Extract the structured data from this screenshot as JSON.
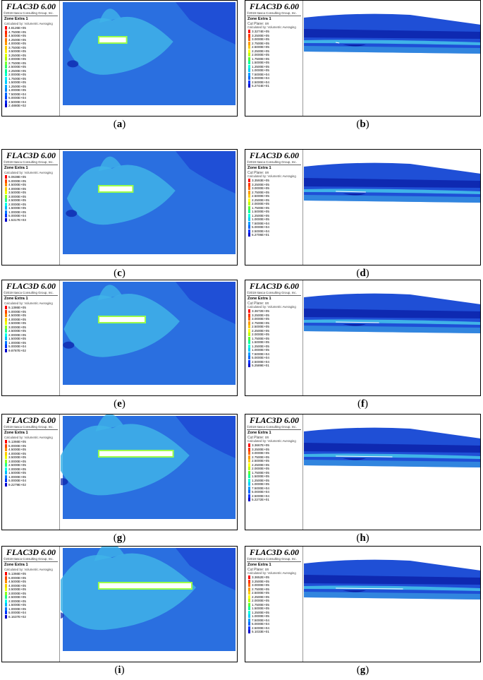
{
  "panels": [
    {
      "id": "a",
      "caption": "a",
      "view": "plan",
      "title": "FLAC3D 6.00",
      "copyright": "©2019 Itasca Consulting Group, Inc.",
      "zone": "Zone Extra 1",
      "cut_plane": "",
      "sub": "Calculated by: Volumetric Averaging",
      "values": [
        "4.8126E+05",
        "4.7500E+05",
        "4.5000E+05",
        "4.2500E+05",
        "4.0000E+05",
        "3.7500E+05",
        "3.5000E+05",
        "3.2500E+05",
        "3.0000E+05",
        "2.7500E+05",
        "2.5000E+05",
        "2.2500E+05",
        "2.0000E+05",
        "1.7500E+05",
        "1.5000E+05",
        "1.2500E+05",
        "1.0000E+05",
        "7.5000E+04",
        "5.0000E+04",
        "2.5000E+04",
        "2.4880E+02"
      ],
      "colors": [
        "#ff0000",
        "#ff2200",
        "#ff4400",
        "#ff7700",
        "#ff9900",
        "#ffcc00",
        "#ffee00",
        "#ddff00",
        "#aaff00",
        "#77ff33",
        "#33ff66",
        "#00ff99",
        "#00ffcc",
        "#00eeff",
        "#00ccff",
        "#00aaff",
        "#0088ff",
        "#0066ff",
        "#0044ff",
        "#0022ee",
        "#0000cc"
      ],
      "slot": 0.08
    },
    {
      "id": "b",
      "caption": "b",
      "view": "section",
      "title": "FLAC3D 6.00",
      "copyright": "©2019 Itasca Consulting Group, Inc.",
      "zone": "Zone Extra 1",
      "cut_plane": "Cut Plane: on",
      "sub": "Calculated by: Volumetric Averaging",
      "values": [
        "3.3274E+05",
        "3.2500E+05",
        "3.0000E+05",
        "2.7500E+05",
        "2.5000E+05",
        "2.2500E+05",
        "2.0000E+05",
        "1.7500E+05",
        "1.5000E+05",
        "1.2500E+05",
        "1.0000E+05",
        "7.5000E+04",
        "5.0000E+04",
        "2.5000E+04",
        "5.2744E+01"
      ],
      "colors": [
        "#ff0000",
        "#ff3300",
        "#ff6600",
        "#ff9900",
        "#ffcc00",
        "#ffff00",
        "#bbff00",
        "#55ff33",
        "#00ff99",
        "#00ffdd",
        "#00ccff",
        "#0099ff",
        "#0066ff",
        "#0033ff",
        "#0000cc"
      ],
      "slot": 0.0
    },
    {
      "id": "c",
      "caption": "c",
      "view": "plan",
      "title": "FLAC3D 6.00",
      "copyright": "©2019 Itasca Consulting Group, Inc.",
      "zone": "Zone Extra 1",
      "cut_plane": "",
      "sub": "Calculated by: Volumetric Averaging",
      "values": [
        "5.0638E+05",
        "5.0000E+05",
        "4.5000E+05",
        "4.0000E+05",
        "3.5000E+05",
        "3.0000E+05",
        "2.5000E+05",
        "2.0000E+05",
        "1.5000E+05",
        "1.0000E+05",
        "5.0000E+04",
        "1.5317E+03"
      ],
      "colors": [
        "#ff0000",
        "#ff4400",
        "#ff8800",
        "#ffcc00",
        "#eeff00",
        "#88ff22",
        "#22ff88",
        "#00ffee",
        "#00bbff",
        "#0077ff",
        "#0033ff",
        "#0000cc"
      ],
      "slot": 0.12
    },
    {
      "id": "d",
      "caption": "d",
      "view": "section",
      "title": "FLAC3D 6.00",
      "copyright": "©2019 Itasca Consulting Group, Inc.",
      "zone": "Zone Extra 1",
      "cut_plane": "Cut Plane: on",
      "sub": "Calculated by: Volumetric Averaging",
      "values": [
        "3.3593E+05",
        "3.2500E+05",
        "3.0000E+05",
        "2.7500E+05",
        "2.5000E+05",
        "2.2500E+05",
        "2.0000E+05",
        "1.7500E+05",
        "1.5000E+05",
        "1.2500E+05",
        "1.0000E+05",
        "7.5000E+04",
        "5.0000E+04",
        "2.5000E+04",
        "5.2706E+01"
      ],
      "colors": [
        "#ff0000",
        "#ff3300",
        "#ff6600",
        "#ff9900",
        "#ffcc00",
        "#ffff00",
        "#bbff00",
        "#55ff33",
        "#00ff99",
        "#00ffdd",
        "#00ccff",
        "#0099ff",
        "#0066ff",
        "#0033ff",
        "#0000cc"
      ],
      "slot": 0.3
    },
    {
      "id": "e",
      "caption": "e",
      "view": "plan",
      "title": "FLAC3D 6.00",
      "copyright": "©2019 Itasca Consulting Group, Inc.",
      "zone": "Zone Extra 1",
      "cut_plane": "",
      "sub": "Calculated by: Volumetric Averaging",
      "values": [
        "5.1386E+05",
        "5.0000E+05",
        "4.5000E+05",
        "4.0000E+05",
        "3.5000E+05",
        "3.0000E+05",
        "2.5000E+05",
        "2.0000E+05",
        "1.5000E+05",
        "1.0000E+05",
        "5.0000E+04",
        "9.8787E+02"
      ],
      "colors": [
        "#ff0000",
        "#ff4400",
        "#ff8800",
        "#ffcc00",
        "#eeff00",
        "#88ff22",
        "#22ff88",
        "#00ffee",
        "#00bbff",
        "#0077ff",
        "#0033ff",
        "#0000cc"
      ],
      "slot": 0.2
    },
    {
      "id": "f",
      "caption": "f",
      "view": "section",
      "title": "FLAC3D 6.00",
      "copyright": "©2019 Itasca Consulting Group, Inc.",
      "zone": "Zone Extra 1",
      "cut_plane": "Cut Plane: on",
      "sub": "Calculated by: Volumetric Averaging",
      "values": [
        "3.3672E+05",
        "3.2500E+05",
        "3.0000E+05",
        "2.7500E+05",
        "2.5000E+05",
        "2.2500E+05",
        "2.0000E+05",
        "1.7500E+05",
        "1.5000E+05",
        "1.2500E+05",
        "1.0000E+05",
        "7.5000E+04",
        "5.0000E+04",
        "2.5000E+04",
        "5.2589E+01"
      ],
      "colors": [
        "#ff0000",
        "#ff3300",
        "#ff6600",
        "#ff9900",
        "#ffcc00",
        "#ffff00",
        "#bbff00",
        "#55ff33",
        "#00ff99",
        "#00ffdd",
        "#00ccff",
        "#0099ff",
        "#0066ff",
        "#0033ff",
        "#0000cc"
      ],
      "slot": 0.45
    },
    {
      "id": "g",
      "caption": "g",
      "view": "plan",
      "title": "FLAC3D 6.00",
      "copyright": "©2019 Itasca Consulting Group, Inc.",
      "zone": "Zone Extra 1",
      "cut_plane": "",
      "sub": "Calculated by: Volumetric Averaging",
      "values": [
        "5.1366E+05",
        "5.0000E+05",
        "4.5000E+05",
        "4.0000E+05",
        "3.5000E+05",
        "3.0000E+05",
        "2.5000E+05",
        "2.0000E+05",
        "1.5000E+05",
        "1.0000E+05",
        "5.0000E+04",
        "9.2279E+02"
      ],
      "colors": [
        "#ff0000",
        "#ff4400",
        "#ff8800",
        "#ffcc00",
        "#eeff00",
        "#88ff22",
        "#22ff88",
        "#00ffee",
        "#00bbff",
        "#0077ff",
        "#0033ff",
        "#0000cc"
      ],
      "slot": 0.38
    },
    {
      "id": "h",
      "caption": "h",
      "view": "section",
      "title": "FLAC3D 6.00",
      "copyright": "©2019 Itasca Consulting Group, Inc.",
      "zone": "Zone Extra 1",
      "cut_plane": "Cut Plane: on",
      "sub": "Calculated by: Volumetric Averaging",
      "values": [
        "3.3667E+05",
        "3.2500E+05",
        "3.0000E+05",
        "2.7500E+05",
        "2.5000E+05",
        "2.2500E+05",
        "2.0000E+05",
        "1.7500E+05",
        "1.5000E+05",
        "1.2500E+05",
        "1.0000E+05",
        "7.5000E+04",
        "5.0000E+04",
        "2.5000E+04",
        "5.2272E+01"
      ],
      "colors": [
        "#ff0000",
        "#ff3300",
        "#ff6600",
        "#ff9900",
        "#ffcc00",
        "#ffff00",
        "#bbff00",
        "#55ff33",
        "#00ff99",
        "#00ffdd",
        "#00ccff",
        "#0099ff",
        "#0066ff",
        "#0033ff",
        "#0000cc"
      ],
      "slot": 0.6
    },
    {
      "id": "i",
      "caption": "i",
      "view": "plan",
      "title": "FLAC3D 6.00",
      "copyright": "©2019 Itasca Consulting Group, Inc.",
      "zone": "Zone Extra 1",
      "cut_plane": "",
      "sub": "Calculated by: Volumetric Averaging",
      "values": [
        "5.1366E+05",
        "5.0000E+05",
        "4.5000E+05",
        "4.0000E+05",
        "3.5000E+05",
        "3.0000E+05",
        "2.5000E+05",
        "2.0000E+05",
        "1.5000E+05",
        "1.0000E+05",
        "5.0000E+04",
        "6.1637E+02"
      ],
      "colors": [
        "#ff0000",
        "#ff4400",
        "#ff8800",
        "#ffcc00",
        "#eeff00",
        "#88ff22",
        "#22ff88",
        "#00ffee",
        "#00bbff",
        "#0077ff",
        "#0033ff",
        "#0000cc"
      ],
      "slot": 0.5
    },
    {
      "id": "j",
      "caption": "g",
      "view": "section",
      "title": "FLAC3D 6.00",
      "copyright": "©2019 Itasca Consulting Group, Inc.",
      "zone": "Zone Extra 1",
      "cut_plane": "Cut Plane: on",
      "sub": "Calculated by: Volumetric Averaging",
      "values": [
        "3.3652E+05",
        "3.2500E+05",
        "3.0000E+05",
        "2.7500E+05",
        "2.5000E+05",
        "2.2500E+05",
        "2.0000E+05",
        "1.7500E+05",
        "1.5000E+05",
        "1.2500E+05",
        "1.0000E+05",
        "7.5000E+04",
        "5.0000E+04",
        "2.5000E+04",
        "5.1033E+01"
      ],
      "colors": [
        "#ff0000",
        "#ff3300",
        "#ff6600",
        "#ff9900",
        "#ffcc00",
        "#ffff00",
        "#bbff00",
        "#55ff33",
        "#00ff99",
        "#00ffdd",
        "#00ccff",
        "#0099ff",
        "#0066ff",
        "#0033ff",
        "#0000cc"
      ],
      "slot": 0.72
    }
  ],
  "plot_colors": {
    "background": "#2a6fe0",
    "low": "#1f4fd6",
    "deep": "#0a1fa8",
    "mid": "#3fb3e8",
    "light": "#7fd4ee",
    "slot": "#ffffff",
    "halo": "#9cff4a"
  }
}
